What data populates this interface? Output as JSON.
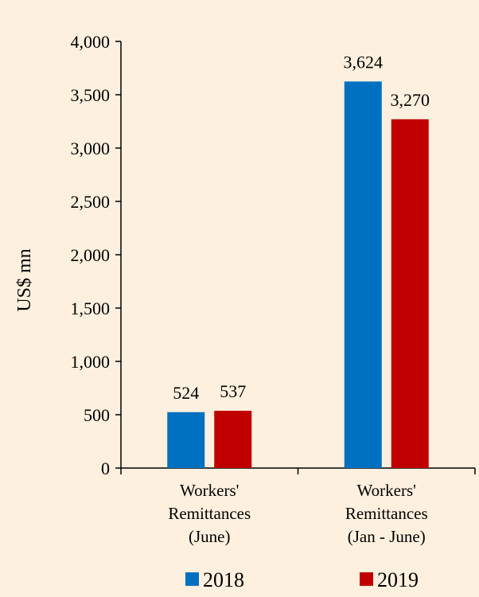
{
  "chart_data": {
    "type": "bar",
    "categories": [
      [
        "Workers'",
        "Remittances",
        "(June)"
      ],
      [
        "Workers'",
        "Remittances",
        "(Jan - June)"
      ]
    ],
    "series": [
      {
        "name": "2018",
        "color": "#0070c0",
        "values": [
          524,
          3624
        ],
        "value_labels": [
          "524",
          "3,624"
        ]
      },
      {
        "name": "2019",
        "color": "#c00000",
        "values": [
          537,
          3270
        ],
        "value_labels": [
          "537",
          "3,270"
        ]
      }
    ],
    "ylabel": "US$ mn",
    "ylim": [
      0,
      4000
    ],
    "yticks": [
      0,
      500,
      1000,
      1500,
      2000,
      2500,
      3000,
      3500,
      4000
    ],
    "ytick_labels": [
      "0",
      "500",
      "1,000",
      "1,500",
      "2,000",
      "2,500",
      "3,000",
      "3,500",
      "4,000"
    ],
    "grid": false,
    "legend_position": "bottom"
  },
  "style": {
    "background": "#fdf0de",
    "axis_color": "#000000"
  }
}
